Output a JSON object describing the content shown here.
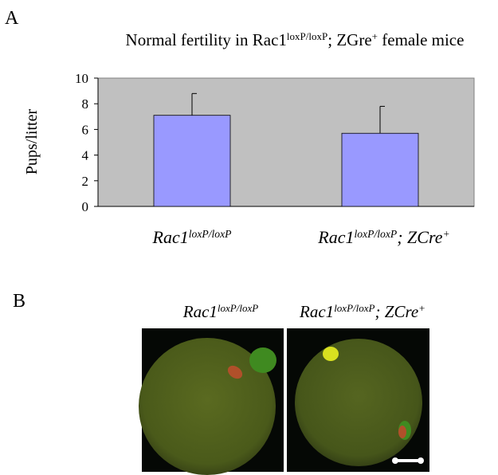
{
  "panel_a_label": "A",
  "chart_data": {
    "type": "bar",
    "title": [
      "Normal fertility in Rac1",
      "loxP/loxP",
      "; ZGre",
      "+",
      " female mice"
    ],
    "y_label": "Pups/litter",
    "categories": [
      [
        "Rac1",
        "loxP/loxP"
      ],
      [
        "Rac1",
        "loxP/loxP",
        "; ZCre",
        "+"
      ]
    ],
    "values": [
      7.1,
      5.7
    ],
    "errors": [
      1.7,
      2.1
    ],
    "color": "#9999ff",
    "plot_background": "#c0c0c0",
    "ylim": [
      0,
      10
    ],
    "yticks": [
      0,
      2,
      4,
      6,
      8,
      10
    ]
  },
  "panel_b": {
    "label": "B",
    "image_labels": [
      [
        "Rac1",
        "loxP/loxP"
      ],
      [
        "Rac1",
        "loxP/loxP",
        "; ZCre",
        "+"
      ]
    ]
  }
}
